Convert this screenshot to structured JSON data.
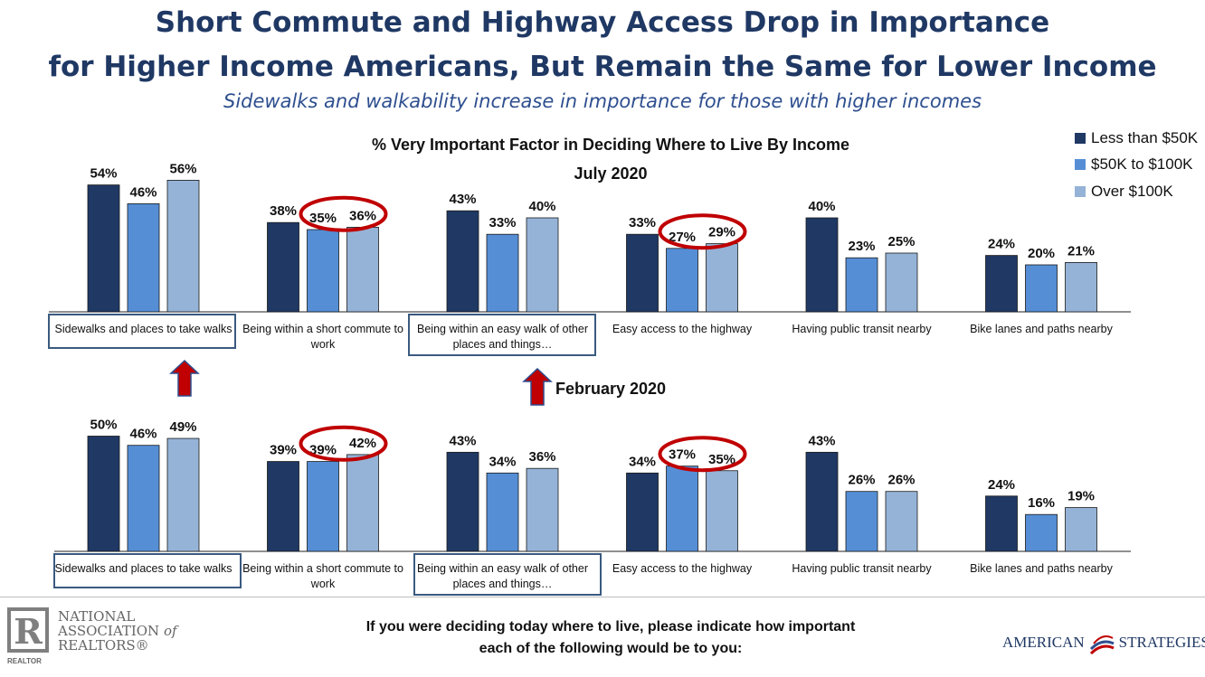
{
  "title_line1": "Short Commute and Highway Access Drop in Importance",
  "title_line2": "for Higher Income Americans, But Remain the Same for Lower Income",
  "subtitle": "Sidewalks and walkability increase in importance for those with higher incomes",
  "chart_title": "% Very Important Factor in Deciding Where to Live By Income",
  "question_line1": "If you were deciding today where to live, please indicate how important",
  "question_line2": "each of the following would be to you:",
  "logos": {
    "nar_line1": "NATIONAL",
    "nar_line2": "ASSOCIATION",
    "nar_of": "of",
    "nar_line3": "REALTORS®",
    "nar_small": "REALTOR",
    "american_strategies_left": "AMERICAN",
    "american_strategies_right": "STRATEGIES"
  },
  "colors": {
    "title": "#1f3864",
    "less_than_50k": "#1f3864",
    "50k_to_100k": "#558ed5",
    "over_100k": "#95b3d7",
    "highlight_circle": "#c00000",
    "highlight_box": "#3a5a80",
    "arrow": "#c00000"
  },
  "chart_data": [
    {
      "type": "bar",
      "title": "July 2020",
      "categories": [
        [
          "Sidewalks and places to take walks"
        ],
        [
          "Being within a short commute to",
          "work"
        ],
        [
          "Being within an easy walk of other",
          "places and things…"
        ],
        [
          "Easy access to the highway"
        ],
        [
          "Having public transit nearby"
        ],
        [
          "Bike lanes and paths nearby"
        ]
      ],
      "series": [
        {
          "name": "Less than $50K",
          "values": [
            54,
            38,
            43,
            33,
            40,
            24
          ]
        },
        {
          "name": "$50K to $100K",
          "values": [
            46,
            35,
            33,
            27,
            23,
            20
          ]
        },
        {
          "name": "Over $100K",
          "values": [
            56,
            36,
            40,
            29,
            25,
            21
          ]
        }
      ],
      "ylim": [
        0,
        56
      ],
      "legend": "top-right",
      "grid": false,
      "highlight_circles": [
        1,
        3
      ],
      "highlight_boxes": [
        0,
        2
      ]
    },
    {
      "type": "bar",
      "title": "February 2020",
      "categories": [
        [
          "Sidewalks and places to take walks"
        ],
        [
          "Being within a short commute to",
          "work"
        ],
        [
          "Being within an easy walk of other",
          "places and things…"
        ],
        [
          "Easy access to the highway"
        ],
        [
          "Having public transit nearby"
        ],
        [
          "Bike lanes and paths nearby"
        ]
      ],
      "series": [
        {
          "name": "Less than $50K",
          "values": [
            50,
            39,
            43,
            34,
            43,
            24
          ]
        },
        {
          "name": "$50K to $100K",
          "values": [
            46,
            39,
            34,
            37,
            26,
            16
          ]
        },
        {
          "name": "Over $100K",
          "values": [
            49,
            42,
            36,
            35,
            26,
            19
          ]
        }
      ],
      "ylim": [
        0,
        56
      ],
      "grid": false,
      "highlight_circles": [
        1,
        3
      ],
      "highlight_boxes": [
        0,
        2
      ],
      "increase_arrows": [
        0,
        2
      ]
    }
  ]
}
